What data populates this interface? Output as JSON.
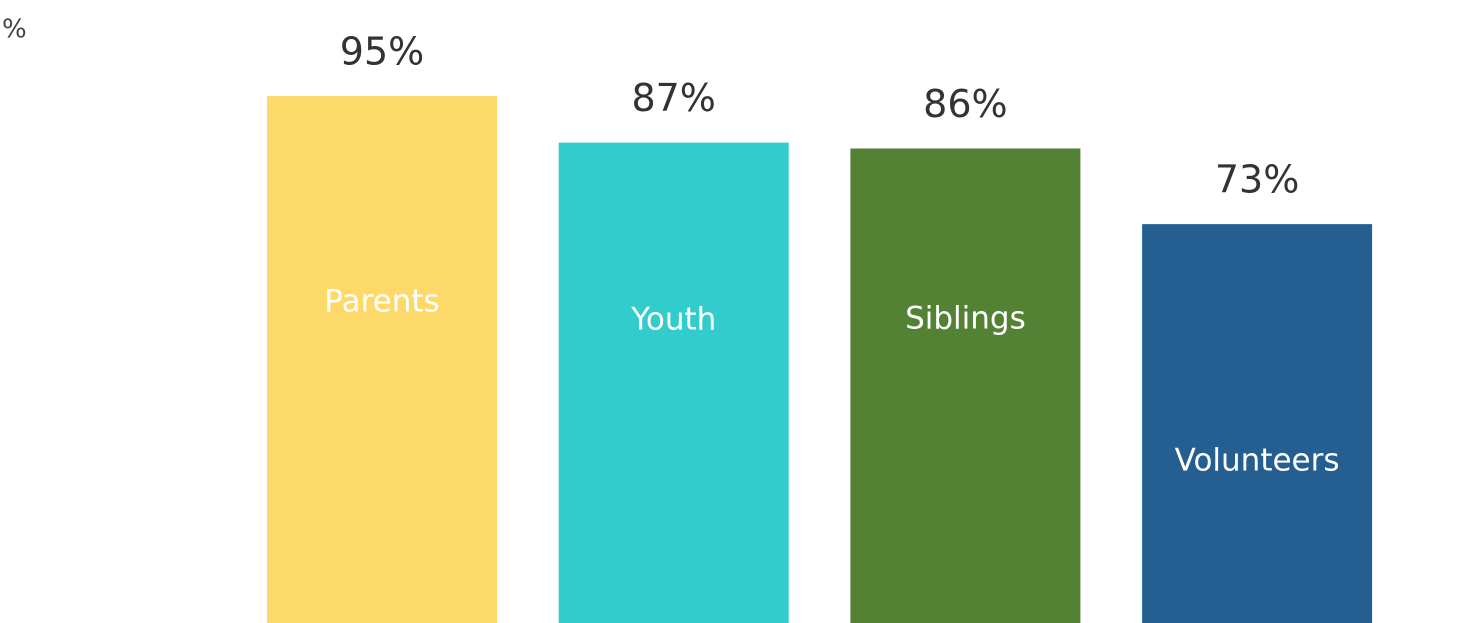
{
  "chart_data": {
    "type": "bar",
    "ylabel": "%",
    "categories": [
      "Parents",
      "Youth",
      "Siblings",
      "Volunteers"
    ],
    "values": [
      95,
      87,
      86,
      73
    ],
    "value_labels": [
      "95%",
      "87%",
      "86%",
      "73%"
    ],
    "colors": [
      "#fdd96a",
      "#33cccc",
      "#548235",
      "#255e91"
    ]
  }
}
